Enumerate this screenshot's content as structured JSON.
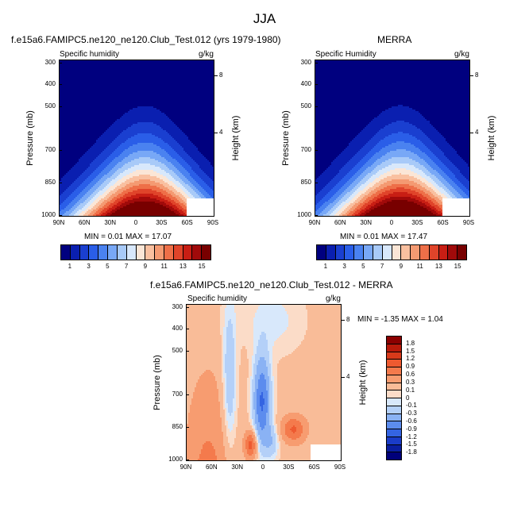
{
  "figure": {
    "title": "JJA"
  },
  "chart_data": [
    {
      "type": "heatmap",
      "title": "f.e15a6.FAMIPC5.ne120_ne120.Club_Test.012 (yrs 1979-1980)",
      "left_label": "Specific humidity",
      "units": "g/kg",
      "ylabel": "Pressure (mb)",
      "y2label": "Height (km)",
      "x_ticks": [
        "90N",
        "60N",
        "30N",
        "0",
        "30S",
        "60S",
        "90S"
      ],
      "y_ticks": [
        "300",
        "400",
        "500",
        "700",
        "850",
        "1000"
      ],
      "y2_ticks": [
        "8",
        "4"
      ],
      "min_label": "MIN =  0.01   MAX =  17.07",
      "min": 0.01,
      "max": 17.07,
      "peak_lat": -10,
      "colorbar": {
        "ticks": [
          "1",
          "3",
          "5",
          "7",
          "9",
          "11",
          "13",
          "15"
        ],
        "colors": [
          "#00007f",
          "#0a1fb0",
          "#1a3fd0",
          "#2a5ee8",
          "#4a82f0",
          "#78a8f6",
          "#a8caf8",
          "#d8e8fb",
          "#fbe6d6",
          "#f9c0a0",
          "#f49a72",
          "#ee6f48",
          "#e0442a",
          "#c81e14",
          "#a00a0a",
          "#780000"
        ]
      }
    },
    {
      "type": "heatmap",
      "title": "MERRA",
      "left_label": "Specific Humidity",
      "units": "g/kg",
      "ylabel": "Pressure (mb)",
      "y2label": "Height (km)",
      "x_ticks": [
        "90N",
        "60N",
        "30N",
        "0",
        "30S",
        "60S",
        "90S"
      ],
      "y_ticks": [
        "300",
        "400",
        "500",
        "700",
        "850",
        "1000"
      ],
      "y2_ticks": [
        "8",
        "4"
      ],
      "min_label": "MIN =  0.01   MAX =  17.47",
      "min": 0.01,
      "max": 17.47,
      "peak_lat": -10,
      "colorbar": {
        "ticks": [
          "1",
          "3",
          "5",
          "7",
          "9",
          "11",
          "13",
          "15"
        ],
        "colors": [
          "#00007f",
          "#0a1fb0",
          "#1a3fd0",
          "#2a5ee8",
          "#4a82f0",
          "#78a8f6",
          "#a8caf8",
          "#d8e8fb",
          "#fbe6d6",
          "#f9c0a0",
          "#f49a72",
          "#ee6f48",
          "#e0442a",
          "#c81e14",
          "#a00a0a",
          "#780000"
        ]
      }
    },
    {
      "type": "heatmap",
      "title": "f.e15a6.FAMIPC5.ne120_ne120.Club_Test.012 - MERRA",
      "left_label": "Specific humidity",
      "units": "g/kg",
      "ylabel": "Pressure (mb)",
      "y2label": "Height (km)",
      "x_ticks": [
        "90N",
        "60N",
        "30N",
        "0",
        "30S",
        "60S",
        "90S"
      ],
      "y_ticks": [
        "300",
        "400",
        "500",
        "700",
        "850",
        "1000"
      ],
      "y2_ticks": [
        "8",
        "4"
      ],
      "min_label": "MIN =  -1.35   MAX =   1.04",
      "min": -1.35,
      "max": 1.04,
      "colorbar": {
        "ticks": [
          "1.8",
          "1.5",
          "1.2",
          "0.9",
          "0.6",
          "0.3",
          "0.1",
          "0",
          "-0.1",
          "-0.3",
          "-0.6",
          "-0.9",
          "-1.2",
          "-1.5",
          "-1.8"
        ],
        "colors": [
          "#8b0000",
          "#b81a0a",
          "#d83a1a",
          "#ee5a30",
          "#f47a4c",
          "#f79c70",
          "#f9bc98",
          "#fbdcc8",
          "#d8e8fb",
          "#b4d0f8",
          "#8ab2f4",
          "#5c8cee",
          "#3464e2",
          "#1a3cc8",
          "#0a1ea0",
          "#00007a"
        ]
      }
    }
  ]
}
